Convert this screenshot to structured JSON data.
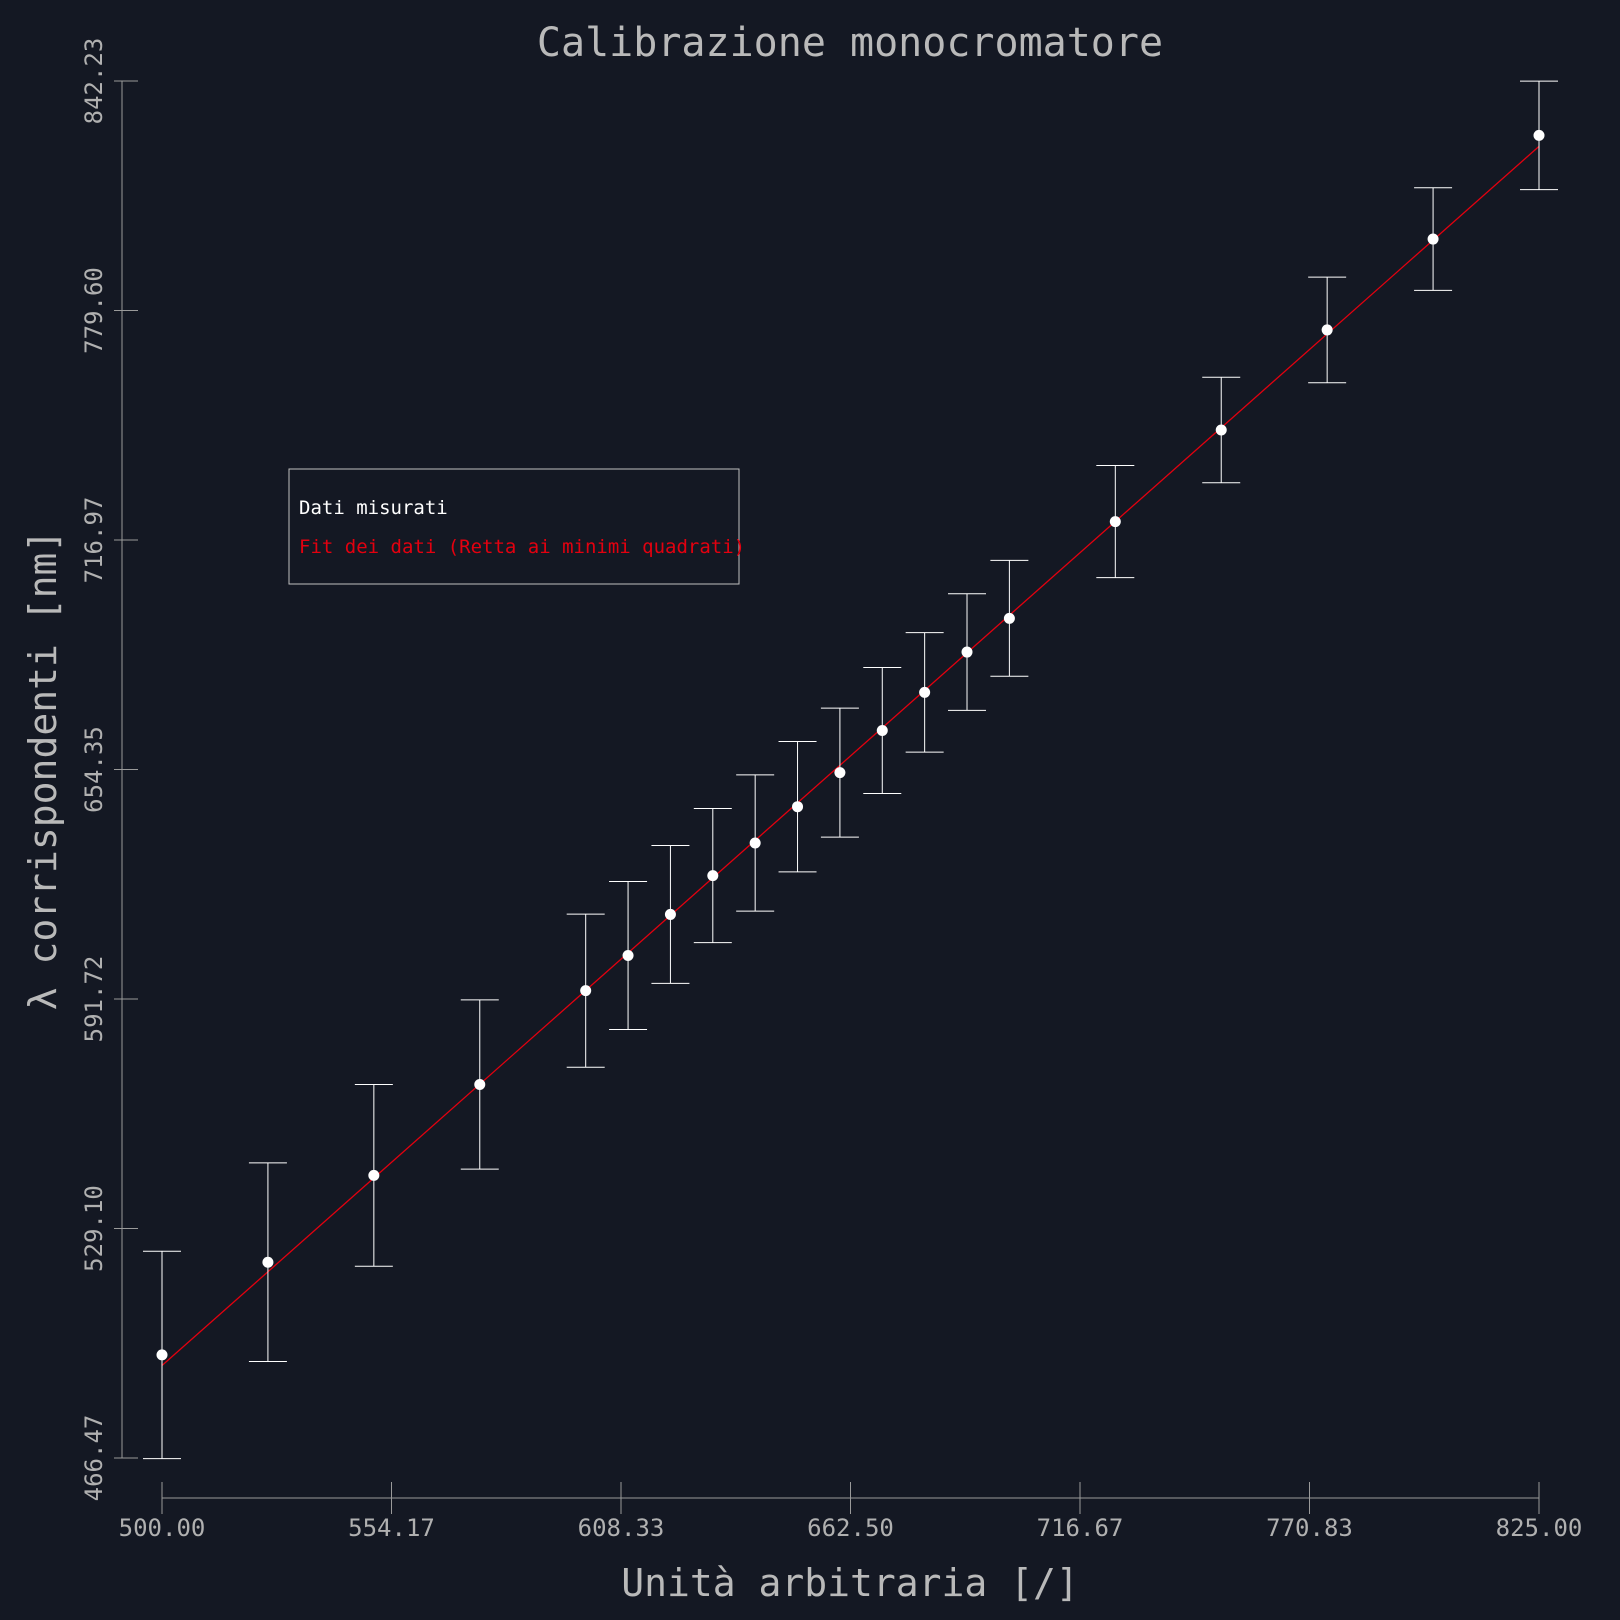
{
  "chart_data": {
    "type": "scatter",
    "title": "Calibrazione monocromatore",
    "xlabel": "Unità arbitraria [/]",
    "ylabel": "λ corrispondenti [nm]",
    "xlim": [
      500.0,
      825.0
    ],
    "ylim": [
      466.47,
      842.23
    ],
    "xticks": [
      "500.00",
      "554.17",
      "608.33",
      "662.50",
      "716.67",
      "770.83",
      "825.00"
    ],
    "yticks": [
      "466.47",
      "529.10",
      "591.72",
      "654.35",
      "716.97",
      "779.60",
      "842.23"
    ],
    "grid": false,
    "legend_position": "upper-left",
    "series": [
      {
        "name": "Dati misurati",
        "kind": "errorbar",
        "color": "#ffffff",
        "points": [
          {
            "x": 500.0,
            "y": 494.6,
            "err": 28.3
          },
          {
            "x": 525.0,
            "y": 519.9,
            "err": 27.1
          },
          {
            "x": 550.0,
            "y": 543.6,
            "err": 24.8
          },
          {
            "x": 575.0,
            "y": 568.4,
            "err": 23.1
          },
          {
            "x": 600.0,
            "y": 594.0,
            "err": 20.9
          },
          {
            "x": 610.0,
            "y": 603.6,
            "err": 20.2
          },
          {
            "x": 620.0,
            "y": 614.8,
            "err": 18.8
          },
          {
            "x": 630.0,
            "y": 625.4,
            "err": 18.3
          },
          {
            "x": 640.0,
            "y": 634.3,
            "err": 18.6
          },
          {
            "x": 650.0,
            "y": 644.2,
            "err": 17.8
          },
          {
            "x": 660.0,
            "y": 653.5,
            "err": 17.6
          },
          {
            "x": 670.0,
            "y": 665.0,
            "err": 17.2
          },
          {
            "x": 680.0,
            "y": 675.4,
            "err": 16.3
          },
          {
            "x": 690.0,
            "y": 686.4,
            "err": 15.9
          },
          {
            "x": 700.0,
            "y": 695.6,
            "err": 15.8
          },
          {
            "x": 725.0,
            "y": 722.0,
            "err": 15.3
          },
          {
            "x": 750.0,
            "y": 747.0,
            "err": 14.4
          },
          {
            "x": 775.0,
            "y": 774.3,
            "err": 14.4
          },
          {
            "x": 800.0,
            "y": 799.1,
            "err": 14.0
          },
          {
            "x": 825.0,
            "y": 827.4,
            "err": 14.8
          }
        ]
      },
      {
        "name": "Fit dei dati (Retta ai minimi quadrati)",
        "kind": "line",
        "color": "#e3000f",
        "points": [
          {
            "x": 500.0,
            "y": 491.7
          },
          {
            "x": 825.0,
            "y": 824.4
          }
        ]
      }
    ]
  }
}
